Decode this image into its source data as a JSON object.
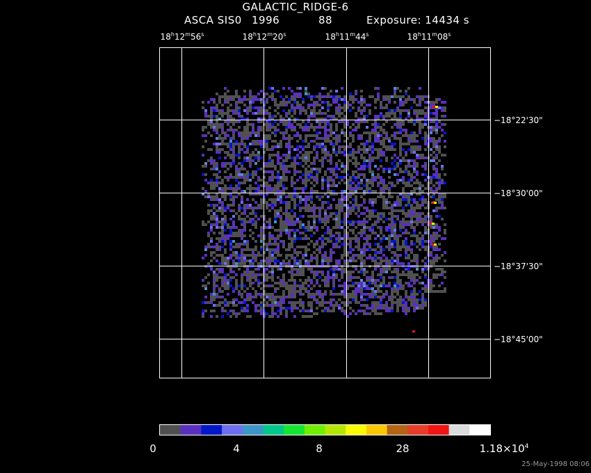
{
  "header": {
    "title": "GALACTIC_RIDGE-6",
    "instrument": "ASCA SIS0",
    "year": "1996",
    "sequence": "88",
    "exposure": "Exposure: 14434 s"
  },
  "timestamp": "25-May-1998 08:06",
  "chart_data": {
    "type": "heatmap",
    "x_ticks": [
      {
        "h": "18",
        "m": "12",
        "s": "56",
        "value": "18h12m56s"
      },
      {
        "h": "18",
        "m": "12",
        "s": "20",
        "value": "18h12m20s"
      },
      {
        "h": "18",
        "m": "11",
        "s": "44",
        "value": "18h11m44s"
      },
      {
        "h": "18",
        "m": "11",
        "s": "08",
        "value": "18h11m08s"
      }
    ],
    "y_ticks": [
      "−18°22'30\"",
      "−18°30'00\"",
      "−18°37'30\"",
      "−18°45'00\""
    ],
    "grid": true,
    "colorbar": {
      "colors": [
        "#505050",
        "#5a30c0",
        "#0018c8",
        "#6e6ef0",
        "#3c96c8",
        "#00c88c",
        "#14e632",
        "#6ef000",
        "#b4e600",
        "#fafa00",
        "#fac800",
        "#b46414",
        "#e63c28",
        "#f01414",
        "#dcdcdc",
        "#ffffff"
      ],
      "labels": [
        {
          "text": "0",
          "index": 0
        },
        {
          "text": "4",
          "index": 4
        },
        {
          "text": "8",
          "index": 8
        },
        {
          "text": "28",
          "index": 12
        },
        {
          "text": "1.18×10",
          "sup": "4",
          "index": 16
        }
      ]
    }
  }
}
